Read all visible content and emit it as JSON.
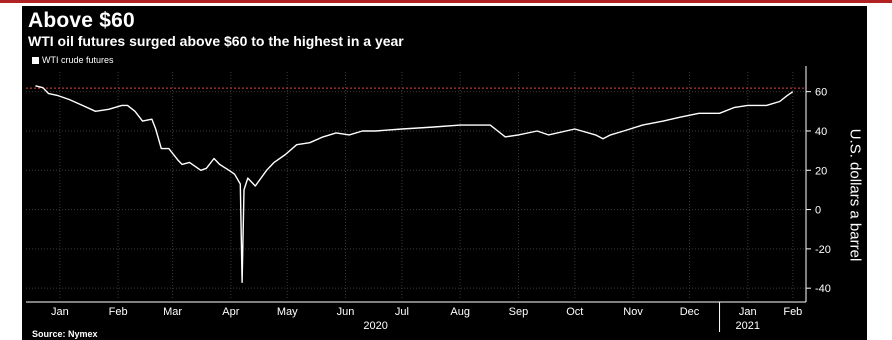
{
  "chart_data": {
    "type": "line",
    "title": "Above $60",
    "subtitle": "WTI oil futures surged above $60 to the highest in a year",
    "ylabel": "U.S. dollars a barrel",
    "source": "Source: Nymex",
    "legend": {
      "position": "top-left",
      "entries": [
        "WTI crude futures"
      ]
    },
    "series": [
      {
        "name": "WTI crude futures",
        "color": "#ffffff",
        "x": [
          "2020-01-02",
          "2020-01-06",
          "2020-01-09",
          "2020-01-14",
          "2020-01-20",
          "2020-01-27",
          "2020-02-03",
          "2020-02-10",
          "2020-02-17",
          "2020-02-20",
          "2020-02-24",
          "2020-02-28",
          "2020-03-04",
          "2020-03-06",
          "2020-03-09",
          "2020-03-13",
          "2020-03-18",
          "2020-03-20",
          "2020-03-24",
          "2020-03-30",
          "2020-04-02",
          "2020-04-06",
          "2020-04-09",
          "2020-04-14",
          "2020-04-17",
          "2020-04-20",
          "2020-04-21",
          "2020-04-22",
          "2020-04-24",
          "2020-04-28",
          "2020-05-04",
          "2020-05-08",
          "2020-05-14",
          "2020-05-20",
          "2020-05-27",
          "2020-06-03",
          "2020-06-10",
          "2020-06-17",
          "2020-06-24",
          "2020-07-01",
          "2020-07-15",
          "2020-08-01",
          "2020-08-15",
          "2020-08-31",
          "2020-09-04",
          "2020-09-08",
          "2020-09-15",
          "2020-09-25",
          "2020-10-01",
          "2020-10-15",
          "2020-10-26",
          "2020-10-30",
          "2020-11-03",
          "2020-11-10",
          "2020-11-20",
          "2020-12-01",
          "2020-12-10",
          "2020-12-20",
          "2020-12-31",
          "2021-01-08",
          "2021-01-15",
          "2021-01-25",
          "2021-02-01",
          "2021-02-05",
          "2021-02-08"
        ],
        "values": [
          63,
          62,
          59,
          58,
          56,
          53,
          50,
          51,
          53,
          53,
          50,
          45,
          46,
          41,
          31,
          31,
          25,
          23,
          24,
          20,
          21,
          26,
          23,
          20,
          18,
          13,
          -37,
          10,
          16,
          12,
          20,
          24,
          28,
          33,
          34,
          37,
          39,
          38,
          40,
          40,
          41,
          42,
          43,
          43,
          40,
          37,
          38,
          40,
          38,
          41,
          38,
          36,
          38,
          40,
          43,
          45,
          47,
          49,
          49,
          52,
          53,
          53,
          55,
          58,
          60
        ]
      }
    ],
    "reference_line": {
      "value": 61.8,
      "color": "#e0463c",
      "style": "dotted"
    },
    "xlim": [
      "2019-12-28",
      "2021-02-15"
    ],
    "ylim": [
      -45,
      70
    ],
    "yticks": [
      -40,
      -20,
      0,
      20,
      40,
      60
    ],
    "month_ticks": [
      {
        "label": "Jan",
        "date": "2020-01-15"
      },
      {
        "label": "Feb",
        "date": "2020-02-15"
      },
      {
        "label": "Mar",
        "date": "2020-03-15"
      },
      {
        "label": "Apr",
        "date": "2020-04-15"
      },
      {
        "label": "May",
        "date": "2020-05-15"
      },
      {
        "label": "Jun",
        "date": "2020-06-15"
      },
      {
        "label": "Jul",
        "date": "2020-07-15"
      },
      {
        "label": "Aug",
        "date": "2020-08-15"
      },
      {
        "label": "Sep",
        "date": "2020-09-15"
      },
      {
        "label": "Oct",
        "date": "2020-10-15"
      },
      {
        "label": "Nov",
        "date": "2020-11-15"
      },
      {
        "label": "Dec",
        "date": "2020-12-15"
      },
      {
        "label": "Jan",
        "date": "2021-01-15"
      },
      {
        "label": "Feb",
        "date": "2021-02-08"
      }
    ],
    "year_ticks": [
      {
        "label": "2020",
        "date": "2020-07-01"
      },
      {
        "label": "2021",
        "date": "2021-01-15"
      }
    ],
    "year_separators": [
      "2020-12-31"
    ],
    "grid": true,
    "colors": {
      "background": "#000000",
      "line": "#ffffff",
      "grid": "#3a3a3a",
      "text": "#ffffff",
      "accent": "#b22222"
    }
  }
}
